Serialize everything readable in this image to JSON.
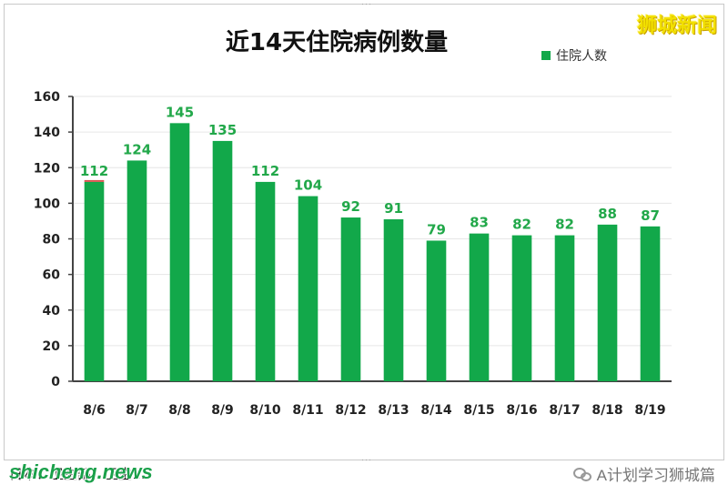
{
  "watermark_top": "狮城新闻",
  "footer": {
    "source_text": "日本：卫生部；卫生…",
    "site": "shicheng.news",
    "account": "A计划学习狮城篇"
  },
  "colors": {
    "bar": "#12a84a",
    "label": "#22a84a",
    "axis": "#444444",
    "grid": "#e6e6e6",
    "top_sliver": "#d9534f"
  },
  "chart_data": {
    "type": "bar",
    "title": "近14天住院病例数量",
    "legend": {
      "entries": [
        "住院人数"
      ],
      "placement": "top-right"
    },
    "categories": [
      "8/6",
      "8/7",
      "8/8",
      "8/9",
      "8/10",
      "8/11",
      "8/12",
      "8/13",
      "8/14",
      "8/15",
      "8/16",
      "8/17",
      "8/18",
      "8/19"
    ],
    "series": [
      {
        "name": "住院人数",
        "values": [
          112,
          124,
          145,
          135,
          112,
          104,
          92,
          91,
          79,
          83,
          82,
          82,
          88,
          87
        ]
      }
    ],
    "data_labels": [
      "112",
      "124",
      "145",
      "135",
      "112",
      "104",
      "92",
      "91",
      "79",
      "83",
      "82",
      "82",
      "88",
      "87"
    ],
    "ylim": [
      0,
      160
    ],
    "yticks": [
      0,
      20,
      40,
      60,
      80,
      100,
      120,
      140,
      160
    ],
    "grid": true,
    "xlabel": "",
    "ylabel": ""
  }
}
